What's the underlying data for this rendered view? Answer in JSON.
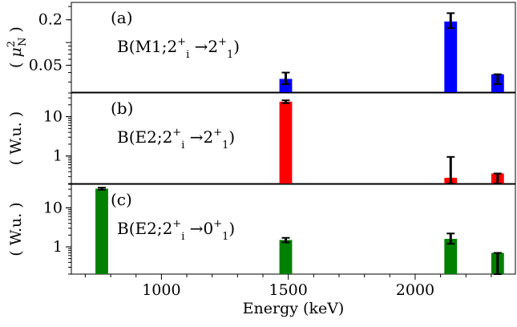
{
  "chart_data": [
    {
      "id": "a",
      "type": "bar",
      "panel_label": "(a)",
      "annotation": {
        "base": "B(M1;2",
        "sub1": "i",
        "sup1": "+",
        "arrow": " →2",
        "sub2": "1",
        "sup2": "+",
        "tail": ")"
      },
      "ylabel": {
        "pre": "( ",
        "mu": "μ",
        "sup": "2",
        "sub": "N",
        "post": " )"
      },
      "yscale": "log",
      "ylim": [
        0.022,
        0.34
      ],
      "ytick_labels": [
        {
          "value": 0.05,
          "label": "0.05"
        },
        {
          "value": 0.2,
          "label": "0.2"
        }
      ],
      "color": "#0000ff",
      "x": [
        1490,
        2140,
        2325
      ],
      "values": [
        0.033,
        0.19,
        0.038
      ],
      "err": [
        [
          0.028,
          0.04
        ],
        [
          0.155,
          0.245
        ],
        [
          0.028,
          0.038
        ]
      ]
    },
    {
      "id": "b",
      "type": "bar",
      "panel_label": "(b)",
      "annotation": {
        "base": "B(E2;2",
        "sub1": "i",
        "sup1": "+",
        "arrow": " →2",
        "sub2": "1",
        "sup2": "+",
        "tail": ")"
      },
      "ylabel": {
        "text": "( W.u. )"
      },
      "yscale": "log",
      "ylim": [
        0.2,
        40
      ],
      "ytick_labels": [
        {
          "value": 1,
          "label": "1"
        },
        {
          "value": 10,
          "label": "10"
        }
      ],
      "color": "#ff0000",
      "x": [
        1490,
        2140,
        2325
      ],
      "values": [
        24,
        0.28,
        0.36
      ],
      "err": [
        [
          22,
          26
        ],
        [
          0.2,
          0.95
        ],
        [
          0.2,
          0.36
        ]
      ]
    },
    {
      "id": "c",
      "type": "bar",
      "panel_label": "(c)",
      "annotation": {
        "base": "B(E2;2",
        "sub1": "i",
        "sup1": "+",
        "arrow": " →0",
        "sub2": "1",
        "sup2": "+",
        "tail": ")"
      },
      "ylabel": {
        "text": "( W.u. )"
      },
      "yscale": "log",
      "ylim": [
        0.2,
        40
      ],
      "ytick_labels": [
        {
          "value": 1,
          "label": "1"
        },
        {
          "value": 10,
          "label": "10"
        }
      ],
      "color": "#008000",
      "x": [
        765,
        1490,
        2140,
        2325
      ],
      "values": [
        31,
        1.5,
        1.6,
        0.7
      ],
      "err": [
        [
          29,
          33
        ],
        [
          1.3,
          1.7
        ],
        [
          1.2,
          2.2
        ],
        [
          0.2,
          0.7
        ]
      ]
    }
  ],
  "xaxis": {
    "label": "Energy (keV)",
    "xlim": [
      645,
      2395
    ],
    "tick_labels": [
      {
        "value": 1000,
        "label": "1000"
      },
      {
        "value": 1500,
        "label": "1500"
      },
      {
        "value": 2000,
        "label": "2000"
      }
    ],
    "bar_width_keV": 50
  }
}
